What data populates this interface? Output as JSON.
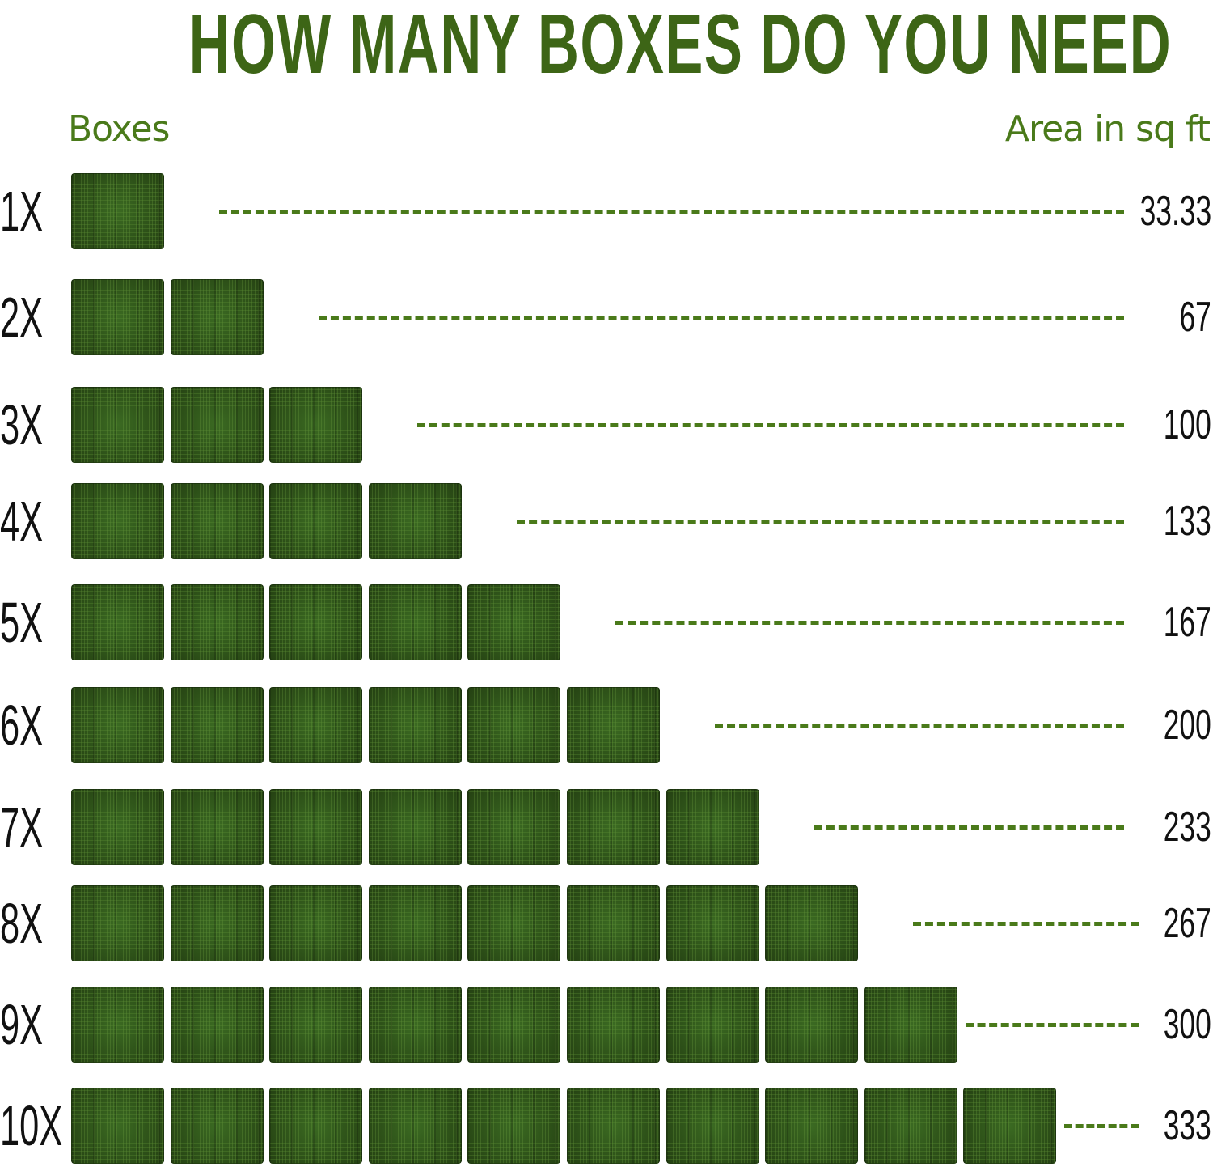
{
  "title": "HOW MANY BOXES DO YOU NEED",
  "headers": {
    "boxes": "Boxes",
    "area": "Area in sq ft"
  },
  "colors": {
    "title": "#3d6516",
    "header": "#4a7a1a",
    "dashes": "#4a7a1a",
    "tile": "#2c4e18",
    "text": "#111111"
  },
  "rows": [
    {
      "label": "1X",
      "boxes": 1,
      "area": "33.33"
    },
    {
      "label": "2X",
      "boxes": 2,
      "area": "67"
    },
    {
      "label": "3X",
      "boxes": 3,
      "area": "100"
    },
    {
      "label": "4X",
      "boxes": 4,
      "area": "133"
    },
    {
      "label": "5X",
      "boxes": 5,
      "area": "167"
    },
    {
      "label": "6X",
      "boxes": 6,
      "area": "200"
    },
    {
      "label": "7X",
      "boxes": 7,
      "area": "233"
    },
    {
      "label": "8X",
      "boxes": 8,
      "area": "267"
    },
    {
      "label": "9X",
      "boxes": 9,
      "area": "300"
    },
    {
      "label": "10X",
      "boxes": 10,
      "area": "333"
    }
  ]
}
